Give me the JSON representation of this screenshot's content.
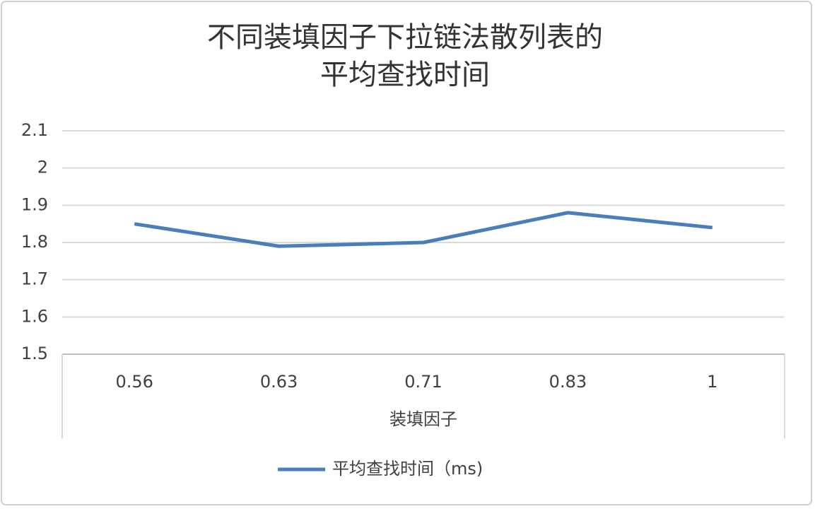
{
  "chart_data": {
    "type": "line",
    "title": [
      "不同装填因子下拉链法散列表的",
      "平均查找时间"
    ],
    "x_label": "装填因子",
    "categories": [
      "0.56",
      "0.63",
      "0.71",
      "0.83",
      "1"
    ],
    "series": [
      {
        "name": "平均查找时间（ms)",
        "color": "#4a7ebb",
        "values": [
          1.85,
          1.79,
          1.8,
          1.88,
          1.84
        ]
      }
    ],
    "ylim": [
      1.5,
      2.1
    ],
    "yticks": [
      1.5,
      1.6,
      1.7,
      1.8,
      1.9,
      2,
      2.1
    ],
    "grid": true,
    "legend": "bottom"
  }
}
